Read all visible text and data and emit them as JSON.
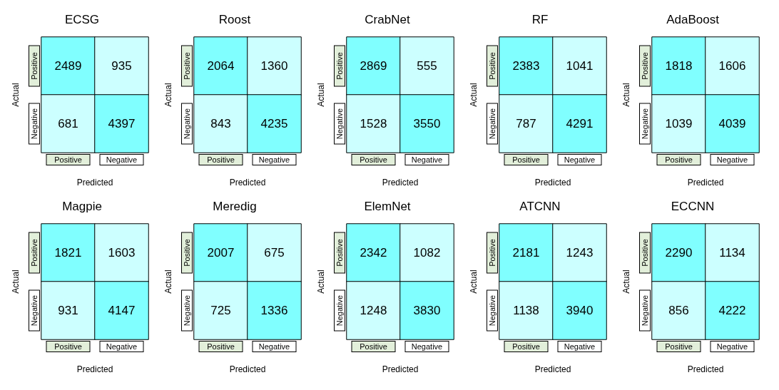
{
  "chart_data": [
    {
      "type": "heatmap",
      "title": "ECSG",
      "xlabel": "Predicted",
      "ylabel": "Actual",
      "categories": [
        "Positive",
        "Negative"
      ],
      "y_categories": [
        "Positive",
        "Negative"
      ],
      "cells": [
        [
          2489,
          935
        ],
        [
          681,
          4397
        ]
      ],
      "colors": [
        [
          "#80ffff",
          "#ccffff"
        ],
        [
          "#ccffff",
          "#80ffff"
        ]
      ],
      "data_labels": true
    },
    {
      "type": "heatmap",
      "title": "Roost",
      "xlabel": "Predicted",
      "ylabel": "Actual",
      "categories": [
        "Positive",
        "Negative"
      ],
      "y_categories": [
        "Positive",
        "Negative"
      ],
      "cells": [
        [
          2064,
          1360
        ],
        [
          843,
          4235
        ]
      ],
      "colors": [
        [
          "#80ffff",
          "#ccffff"
        ],
        [
          "#ccffff",
          "#80ffff"
        ]
      ],
      "data_labels": true
    },
    {
      "type": "heatmap",
      "title": "CrabNet",
      "xlabel": "Predicted",
      "ylabel": "Actual",
      "categories": [
        "Positive",
        "Negative"
      ],
      "y_categories": [
        "Positive",
        "Negative"
      ],
      "cells": [
        [
          2869,
          555
        ],
        [
          1528,
          3550
        ]
      ],
      "colors": [
        [
          "#80ffff",
          "#ccffff"
        ],
        [
          "#ccffff",
          "#80ffff"
        ]
      ],
      "data_labels": true
    },
    {
      "type": "heatmap",
      "title": "RF",
      "xlabel": "Predicted",
      "ylabel": "Actual",
      "categories": [
        "Positive",
        "Negative"
      ],
      "y_categories": [
        "Positive",
        "Negative"
      ],
      "cells": [
        [
          2383,
          1041
        ],
        [
          787,
          4291
        ]
      ],
      "colors": [
        [
          "#80ffff",
          "#ccffff"
        ],
        [
          "#ccffff",
          "#80ffff"
        ]
      ],
      "data_labels": true
    },
    {
      "type": "heatmap",
      "title": "AdaBoost",
      "xlabel": "Predicted",
      "ylabel": "Actual",
      "categories": [
        "Positive",
        "Negative"
      ],
      "y_categories": [
        "Positive",
        "Negative"
      ],
      "cells": [
        [
          1818,
          1606
        ],
        [
          1039,
          4039
        ]
      ],
      "colors": [
        [
          "#80ffff",
          "#ccffff"
        ],
        [
          "#ccffff",
          "#80ffff"
        ]
      ],
      "data_labels": true
    },
    {
      "type": "heatmap",
      "title": "Magpie",
      "xlabel": "Predicted",
      "ylabel": "Actual",
      "categories": [
        "Positive",
        "Negative"
      ],
      "y_categories": [
        "Positive",
        "Negative"
      ],
      "cells": [
        [
          1821,
          1603
        ],
        [
          931,
          4147
        ]
      ],
      "colors": [
        [
          "#80ffff",
          "#ccffff"
        ],
        [
          "#ccffff",
          "#80ffff"
        ]
      ],
      "data_labels": true
    },
    {
      "type": "heatmap",
      "title": "Meredig",
      "xlabel": "Predicted",
      "ylabel": "Actual",
      "categories": [
        "Positive",
        "Negative"
      ],
      "y_categories": [
        "Positive",
        "Negative"
      ],
      "cells": [
        [
          2007,
          675
        ],
        [
          725,
          1336
        ]
      ],
      "colors": [
        [
          "#80ffff",
          "#ccffff"
        ],
        [
          "#ccffff",
          "#80ffff"
        ]
      ],
      "data_labels": true
    },
    {
      "type": "heatmap",
      "title": "ElemNet",
      "xlabel": "Predicted",
      "ylabel": "Actual",
      "categories": [
        "Positive",
        "Negative"
      ],
      "y_categories": [
        "Positive",
        "Negative"
      ],
      "cells": [
        [
          2342,
          1082
        ],
        [
          1248,
          3830
        ]
      ],
      "colors": [
        [
          "#80ffff",
          "#ccffff"
        ],
        [
          "#ccffff",
          "#80ffff"
        ]
      ],
      "data_labels": true
    },
    {
      "type": "heatmap",
      "title": "ATCNN",
      "xlabel": "Predicted",
      "ylabel": "Actual",
      "categories": [
        "Positive",
        "Negative"
      ],
      "y_categories": [
        "Positive",
        "Negative"
      ],
      "cells": [
        [
          2181,
          1243
        ],
        [
          1138,
          3940
        ]
      ],
      "colors": [
        [
          "#80ffff",
          "#ccffff"
        ],
        [
          "#ccffff",
          "#80ffff"
        ]
      ],
      "data_labels": true
    },
    {
      "type": "heatmap",
      "title": "ECCNN",
      "xlabel": "Predicted",
      "ylabel": "Actual",
      "categories": [
        "Positive",
        "Negative"
      ],
      "y_categories": [
        "Positive",
        "Negative"
      ],
      "cells": [
        [
          2290,
          1134
        ],
        [
          856,
          4222
        ]
      ],
      "colors": [
        [
          "#80ffff",
          "#ccffff"
        ],
        [
          "#ccffff",
          "#80ffff"
        ]
      ],
      "data_labels": true
    }
  ]
}
